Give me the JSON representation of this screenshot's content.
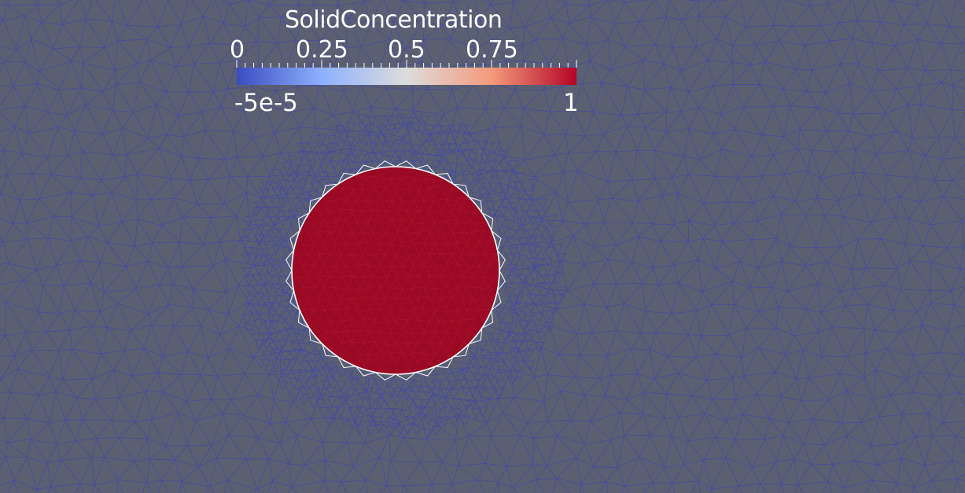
{
  "legend": {
    "title": "SolidConcentration",
    "tick_labels": [
      "0",
      "0.25",
      "0.5",
      "0.75"
    ],
    "range_min": "-5e-5",
    "range_max": "1",
    "colormap": [
      "#3b4cc0",
      "#8db0fe",
      "#dddddd",
      "#f49a7b",
      "#b40426"
    ]
  },
  "colors": {
    "background": "#5a5f72",
    "mesh_edges": "#3f46a8",
    "mesh_vertices": "#3a3fb4",
    "solid_fill": "#9b0a24",
    "solid_edges": "#c11a3a",
    "interface_edges": "#ffffff"
  },
  "field": {
    "min": -5e-05,
    "max": 1,
    "solid_value": 1,
    "fluid_value": 0
  }
}
